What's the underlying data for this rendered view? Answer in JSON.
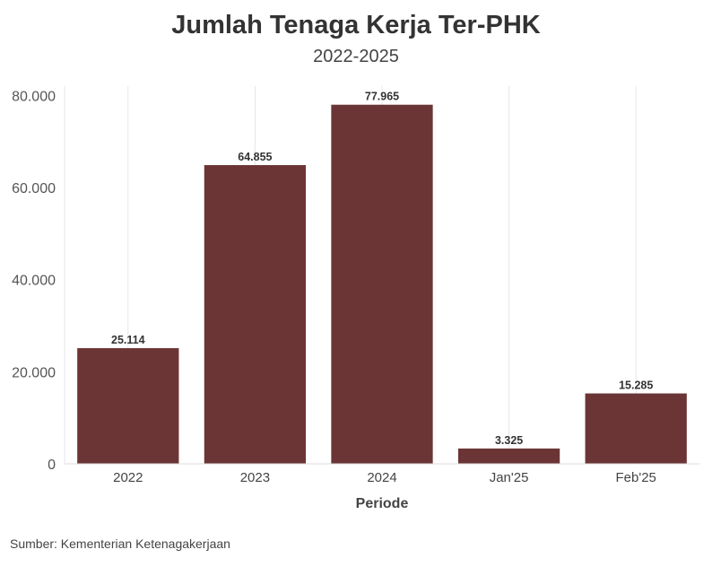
{
  "chart_data": {
    "type": "bar",
    "title": "Jumlah Tenaga Kerja Ter-PHK",
    "subtitle": "2022-2025",
    "xlabel": "Periode",
    "ylabel": "",
    "categories": [
      "2022",
      "2023",
      "2024",
      "Jan'25",
      "Feb'25"
    ],
    "values": [
      25114,
      64855,
      77965,
      3325,
      15285
    ],
    "value_labels": [
      "25.114",
      "64.855",
      "77.965",
      "3.325",
      "15.285"
    ],
    "ylim": [
      0,
      82000
    ],
    "yticks": [
      0,
      20000,
      40000,
      60000,
      80000
    ],
    "ytick_labels": [
      "0",
      "20.000",
      "40.000",
      "60.000",
      "80.000"
    ],
    "bar_color": "#6b3536",
    "grid": true,
    "legend": "none"
  },
  "source_text": "Sumber: Kementerian Ketenagakerjaan"
}
